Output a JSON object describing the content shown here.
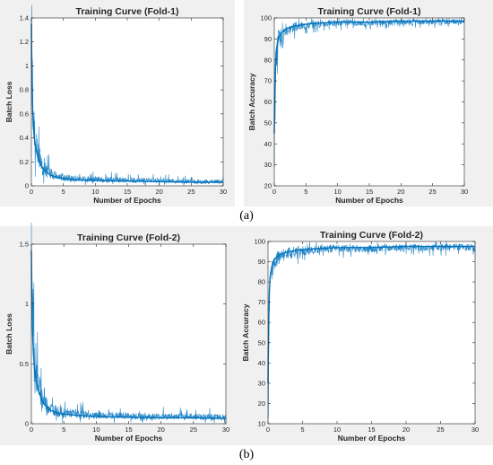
{
  "captions": {
    "a": "(a)",
    "b": "(b)"
  },
  "colors": {
    "line": "#0072bd",
    "panel_bg": "#f0f0f0",
    "axes_bg": "#ffffff",
    "axis": "#262626"
  },
  "chart_data": [
    {
      "type": "line",
      "title": "Training Curve (Fold-1)",
      "xlabel": "Number of Epochs",
      "ylabel": "Batch Loss",
      "xlim": [
        0,
        30
      ],
      "ylim": [
        0,
        1.4
      ],
      "xticks": [
        0,
        5,
        10,
        15,
        20,
        25,
        30
      ],
      "yticks": [
        0,
        0.2,
        0.4,
        0.6,
        0.8,
        1,
        1.2,
        1.4
      ],
      "grid": false,
      "x": [
        0,
        0.1,
        0.2,
        0.3,
        0.5,
        0.75,
        1,
        1.5,
        2,
        3,
        4,
        5,
        7,
        10,
        15,
        20,
        25,
        30
      ],
      "y": [
        1.35,
        0.85,
        0.65,
        0.5,
        0.38,
        0.3,
        0.24,
        0.17,
        0.13,
        0.09,
        0.07,
        0.06,
        0.05,
        0.045,
        0.04,
        0.035,
        0.03,
        0.03
      ]
    },
    {
      "type": "line",
      "title": "Training Curve (Fold-1)",
      "xlabel": "Number of Epochs",
      "ylabel": "Batch Accuracy",
      "xlim": [
        0,
        30
      ],
      "ylim": [
        20,
        100
      ],
      "xticks": [
        0,
        5,
        10,
        15,
        20,
        25,
        30
      ],
      "yticks": [
        20,
        30,
        40,
        50,
        60,
        70,
        80,
        90,
        100
      ],
      "grid": false,
      "x": [
        0,
        0.1,
        0.2,
        0.3,
        0.5,
        0.75,
        1,
        1.5,
        2,
        3,
        4,
        5,
        7,
        10,
        15,
        20,
        25,
        30
      ],
      "y": [
        45,
        65,
        78,
        84,
        88,
        91,
        92.5,
        94,
        95,
        96,
        96.5,
        97,
        97.5,
        98,
        98,
        98.5,
        98.5,
        98.5
      ]
    },
    {
      "type": "line",
      "title": "Training Curve (Fold-2)",
      "xlabel": "Number of Epochs",
      "ylabel": "Batch Loss",
      "xlim": [
        0,
        30
      ],
      "ylim": [
        0,
        1.5
      ],
      "xticks": [
        0,
        5,
        10,
        15,
        20,
        25,
        30
      ],
      "yticks": [
        0,
        0.5,
        1,
        1.5
      ],
      "grid": false,
      "x": [
        0,
        0.1,
        0.2,
        0.3,
        0.5,
        0.75,
        1,
        1.5,
        2,
        3,
        4,
        5,
        7,
        10,
        15,
        20,
        25,
        30
      ],
      "y": [
        1.45,
        1.0,
        0.75,
        0.6,
        0.45,
        0.36,
        0.3,
        0.21,
        0.16,
        0.11,
        0.09,
        0.08,
        0.07,
        0.06,
        0.055,
        0.05,
        0.05,
        0.045
      ]
    },
    {
      "type": "line",
      "title": "Training Curve (Fold-2)",
      "xlabel": "Number of Epochs",
      "ylabel": "Batch Accuracy",
      "xlim": [
        0,
        30
      ],
      "ylim": [
        10,
        100
      ],
      "xticks": [
        0,
        5,
        10,
        15,
        20,
        25,
        30
      ],
      "yticks": [
        10,
        20,
        30,
        40,
        50,
        60,
        70,
        80,
        90,
        100
      ],
      "grid": false,
      "x": [
        0,
        0.1,
        0.2,
        0.3,
        0.5,
        0.75,
        1,
        1.5,
        2,
        3,
        4,
        5,
        7,
        10,
        15,
        20,
        25,
        30
      ],
      "y": [
        30,
        60,
        75,
        82,
        87,
        90,
        91.5,
        93,
        94,
        95,
        95.5,
        96,
        96.5,
        97,
        97,
        97.5,
        97.5,
        97.5
      ]
    }
  ]
}
